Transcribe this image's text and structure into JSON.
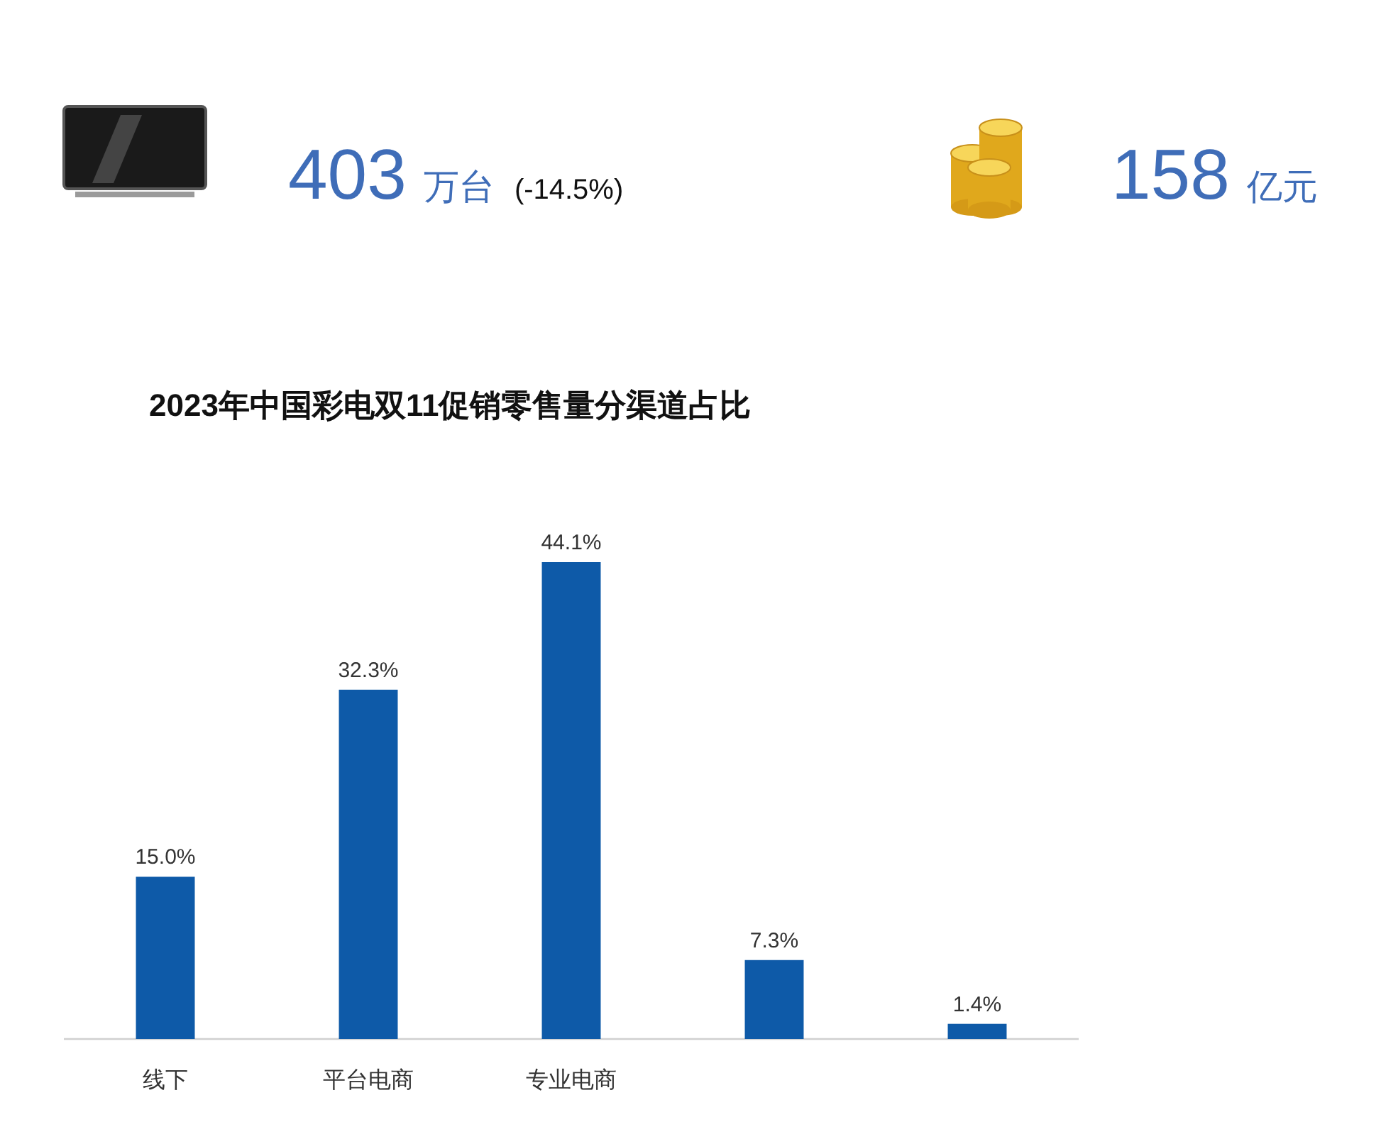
{
  "chart_data": [
    {
      "type": "other",
      "annotations": [
        "403",
        "万台",
        "(-14.5%)",
        "158",
        "亿元"
      ]
    },
    {
      "type": "bar",
      "title": "2023年中国彩电双11促销零售量分渠道占比",
      "categories": [
        "线下",
        "平台电商",
        "专业电商",
        null,
        null
      ],
      "values": [
        15.0,
        32.3,
        44.1,
        7.3,
        1.4
      ],
      "value_labels": [
        "15.0%",
        "32.3%",
        "44.1%",
        "7.3%",
        "1.4%"
      ],
      "color": "#0e5aa8"
    }
  ]
}
